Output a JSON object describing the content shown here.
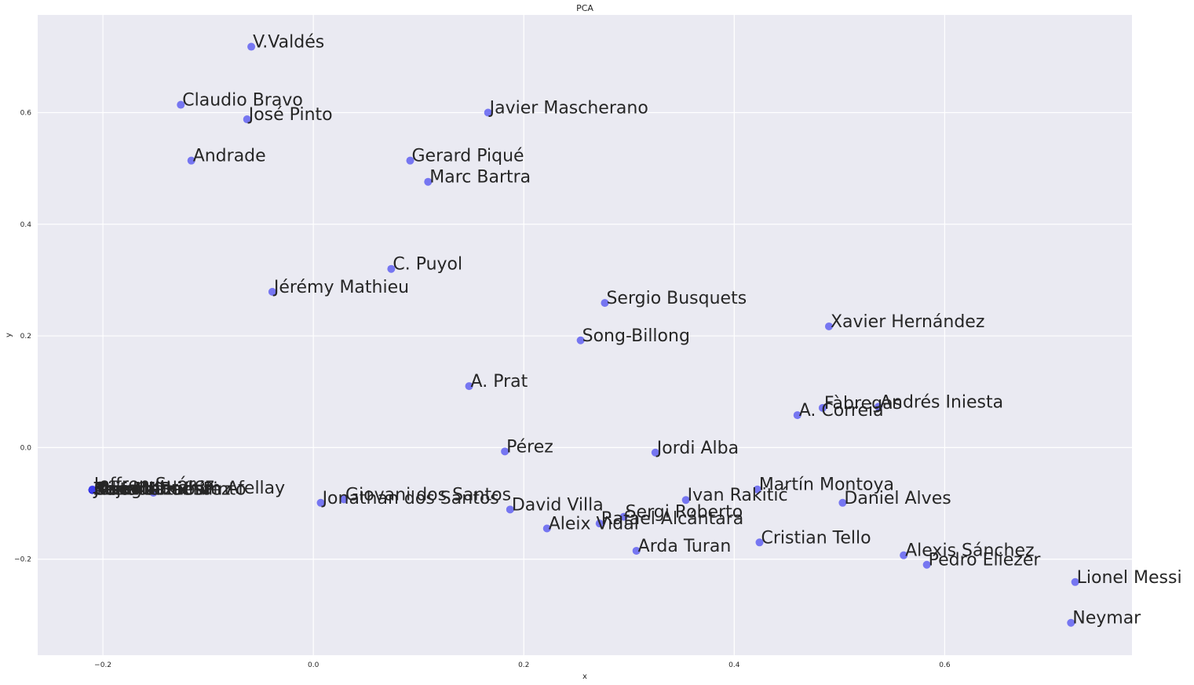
{
  "chart_data": {
    "type": "scatter",
    "title": "PCA",
    "xlabel": "x",
    "ylabel": "y",
    "xlim": [
      -0.262,
      0.778
    ],
    "ylim": [
      -0.372,
      0.775
    ],
    "xticks": [
      -0.2,
      0.0,
      0.2,
      0.4,
      0.6
    ],
    "yticks": [
      -0.2,
      0.0,
      0.2,
      0.4,
      0.6
    ],
    "xtick_labels": [
      "−0.2",
      "0.0",
      "0.2",
      "0.4",
      "0.6"
    ],
    "ytick_labels": [
      "−0.2",
      "0.0",
      "0.2",
      "0.4",
      "0.6"
    ],
    "grid": true,
    "marker_color": "#4f4ff0",
    "cluster_color": "#0b0bd9",
    "background": "#eaeaf2",
    "points": [
      {
        "label": "V.Valdés",
        "x": -0.059,
        "y": 0.718
      },
      {
        "label": "Claudio Bravo",
        "x": -0.126,
        "y": 0.614
      },
      {
        "label": "José Pinto",
        "x": -0.063,
        "y": 0.588
      },
      {
        "label": "Javier Mascherano",
        "x": 0.166,
        "y": 0.6
      },
      {
        "label": "Andrade",
        "x": -0.116,
        "y": 0.514
      },
      {
        "label": "Gerard Piqué",
        "x": 0.092,
        "y": 0.514
      },
      {
        "label": "Marc Bartra",
        "x": 0.109,
        "y": 0.476
      },
      {
        "label": "C. Puyol",
        "x": 0.074,
        "y": 0.32
      },
      {
        "label": "Jérémy Mathieu",
        "x": -0.039,
        "y": 0.279
      },
      {
        "label": "Sergio Busquets",
        "x": 0.277,
        "y": 0.259
      },
      {
        "label": "Xavier Hernández",
        "x": 0.49,
        "y": 0.217
      },
      {
        "label": "Song-Billong",
        "x": 0.254,
        "y": 0.192
      },
      {
        "label": "A. Prat",
        "x": 0.148,
        "y": 0.11
      },
      {
        "label": "Fàbregas",
        "x": 0.484,
        "y": 0.071
      },
      {
        "label": "Andrés Iniesta",
        "x": 0.537,
        "y": 0.073
      },
      {
        "label": "A. Correia",
        "x": 0.46,
        "y": 0.058
      },
      {
        "label": "Pérez",
        "x": 0.182,
        "y": -0.007
      },
      {
        "label": "Jordi Alba",
        "x": 0.325,
        "y": -0.009
      },
      {
        "label": "Martín Montoya",
        "x": 0.422,
        "y": -0.075
      },
      {
        "label": "Ivan Rakitić",
        "x": 0.354,
        "y": -0.094
      },
      {
        "label": "Daniel Alves",
        "x": 0.503,
        "y": -0.099
      },
      {
        "label": "Jonathan dos Santos",
        "x": 0.007,
        "y": -0.099
      },
      {
        "label": "Giovani dos Santos",
        "x": 0.029,
        "y": -0.093
      },
      {
        "label": "David Villa",
        "x": 0.187,
        "y": -0.111
      },
      {
        "label": "Sergi Roberto",
        "x": 0.295,
        "y": -0.124
      },
      {
        "label": "Rafael Alcántara",
        "x": 0.272,
        "y": -0.136
      },
      {
        "label": "Aleix Vidal",
        "x": 0.222,
        "y": -0.145
      },
      {
        "label": "Arda Turan",
        "x": 0.307,
        "y": -0.185
      },
      {
        "label": "Cristian Tello",
        "x": 0.424,
        "y": -0.17
      },
      {
        "label": "Alexis Sánchez",
        "x": 0.561,
        "y": -0.193
      },
      {
        "label": "Pedro Eliezer",
        "x": 0.583,
        "y": -0.21
      },
      {
        "label": "Lionel Messi",
        "x": 0.724,
        "y": -0.241
      },
      {
        "label": "Neymar",
        "x": 0.72,
        "y": -0.314
      },
      {
        "label": "Jeffren Suárez",
        "x": -0.21,
        "y": -0.075
      },
      {
        "label": "Ibrahim Afellay",
        "x": -0.152,
        "y": -0.081
      }
    ],
    "cluster": {
      "x": -0.21,
      "y": -0.076,
      "labels": [
        "Thiago",
        "José Manuel Pinto",
        "Maxwell",
        "Adriano",
        "Keita",
        "Bojan Krkić",
        "Oier Olazabal",
        "Marc Muniesa",
        "Sandro Ramírez"
      ]
    }
  }
}
